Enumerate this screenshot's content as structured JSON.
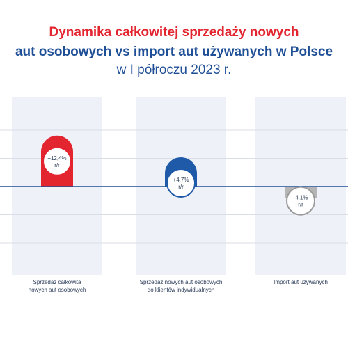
{
  "title": {
    "line1": "Dynamika całkowitej sprzedaży nowych",
    "line2": "aut osobowych vs import aut używanych w Polsce",
    "line3": "w I półroczu 2023 r."
  },
  "chart_data": {
    "type": "bar",
    "categories": [
      [
        "Sprzedaż całkowita",
        "nowych aut osobowych"
      ],
      [
        "Sprzedaż nowych aut osobowych",
        "do klientów indywidualnych"
      ],
      [
        "Import aut używanych"
      ]
    ],
    "values": [
      12.4,
      4.7,
      -4.1
    ],
    "data_labels": [
      [
        "+12,4%",
        "r/r"
      ],
      [
        "+4,7%",
        "r/r"
      ],
      [
        "-4,1%",
        "r/r"
      ]
    ],
    "ylim": [
      -20,
      20
    ],
    "grid": true,
    "colors": [
      "#e32530",
      "#1f5aa8",
      "#b5b5b5"
    ],
    "label_ring_colors": [
      "#e32530",
      "#1f5aa8",
      "#9a9a9a"
    ],
    "accent_colors": {
      "red": "#e32530",
      "blue": "#1f4f96",
      "axis": "#1f4f96",
      "grid": "#d8dde6",
      "band": "#eef1f8"
    }
  }
}
